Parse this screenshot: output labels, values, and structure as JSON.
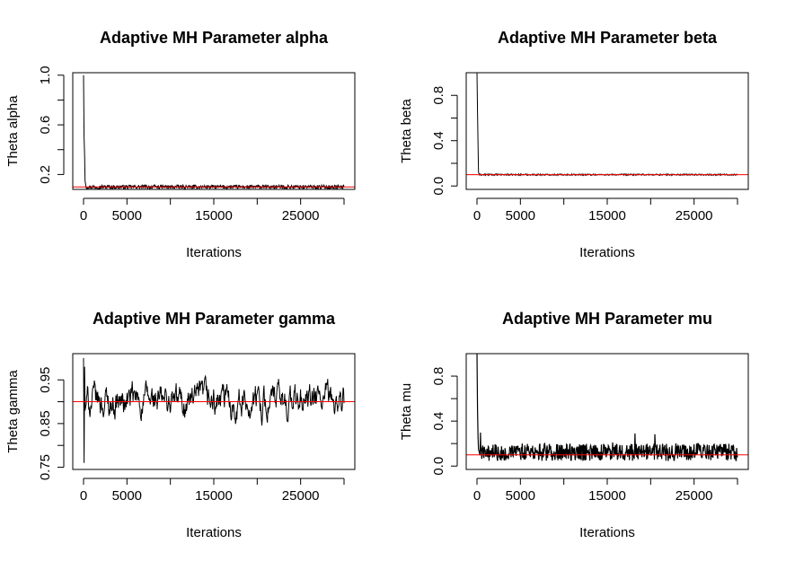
{
  "chart_data": [
    {
      "type": "line",
      "title": "Adaptive MH Parameter alpha",
      "xlabel": "Iterations",
      "ylabel": "Theta alpha",
      "xlim": [
        0,
        30000
      ],
      "ylim": [
        0.08,
        1.02
      ],
      "xticks": [
        0,
        5000,
        15000,
        25000
      ],
      "xtick_labels": [
        "0",
        "5000",
        "15000",
        "25000"
      ],
      "yticks": [
        0.2,
        0.6,
        1.0
      ],
      "ytick_labels": [
        "0.2",
        "0.6",
        "1.0"
      ],
      "yminor": [
        0.4,
        0.8
      ],
      "reference_line": 0.1,
      "reference_color": "#ff0000",
      "trace": {
        "start": 1.0,
        "burn": [
          0.5,
          0.35,
          0.15
        ],
        "center": 0.1,
        "spread": 0.015
      },
      "grid": false,
      "legend": "none"
    },
    {
      "type": "line",
      "title": "Adaptive MH Parameter beta",
      "xlabel": "Iterations",
      "ylabel": "Theta beta",
      "xlim": [
        0,
        30000
      ],
      "ylim": [
        -0.03,
        1.0
      ],
      "xticks": [
        0,
        5000,
        15000,
        25000
      ],
      "xtick_labels": [
        "0",
        "5000",
        "15000",
        "25000"
      ],
      "yticks": [
        0.0,
        0.4,
        0.8
      ],
      "ytick_labels": [
        "0.0",
        "0.4",
        "0.8"
      ],
      "yminor": [
        0.2,
        0.6
      ],
      "reference_line": 0.1,
      "reference_color": "#ff0000",
      "trace": {
        "start": 1.0,
        "burn": [
          0.65,
          0.35,
          0.12
        ],
        "center": 0.1,
        "spread": 0.006
      },
      "grid": false,
      "legend": "none"
    },
    {
      "type": "line",
      "title": "Adaptive MH Parameter gamma",
      "xlabel": "Iterations",
      "ylabel": "Theta gamma",
      "xlim": [
        0,
        30000
      ],
      "ylim": [
        0.745,
        1.01
      ],
      "xticks": [
        0,
        5000,
        15000,
        25000
      ],
      "xtick_labels": [
        "0",
        "5000",
        "15000",
        "25000"
      ],
      "yticks": [
        0.75,
        0.85,
        0.95
      ],
      "ytick_labels": [
        "0.75",
        "0.85",
        "0.95"
      ],
      "yminor": [
        0.8,
        0.9
      ],
      "reference_line": 0.9,
      "reference_color": "#ff0000",
      "trace": {
        "start": 1.0,
        "burn": [
          0.76,
          0.98,
          0.88
        ],
        "center": 0.9,
        "spread": 0.045
      },
      "grid": false,
      "legend": "none"
    },
    {
      "type": "line",
      "title": "Adaptive MH Parameter mu",
      "xlabel": "Iterations",
      "ylabel": "Theta mu",
      "xlim": [
        0,
        30000
      ],
      "ylim": [
        -0.03,
        1.0
      ],
      "xticks": [
        0,
        5000,
        15000,
        25000
      ],
      "xtick_labels": [
        "0",
        "5000",
        "15000",
        "25000"
      ],
      "yticks": [
        0.0,
        0.4,
        0.8
      ],
      "ytick_labels": [
        "0.0",
        "0.4",
        "0.8"
      ],
      "yminor": [
        0.2,
        0.6
      ],
      "reference_line": 0.1,
      "reference_color": "#ff0000",
      "trace": {
        "start": 1.0,
        "burn": [
          0.5,
          0.25,
          0.15
        ],
        "center": 0.1,
        "spread": 0.07
      },
      "grid": false,
      "legend": "none"
    }
  ]
}
